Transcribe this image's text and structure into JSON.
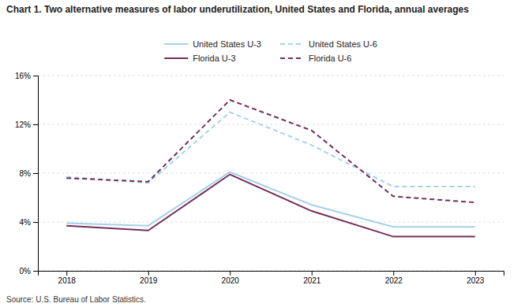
{
  "chart_data": {
    "type": "line",
    "title": "Chart 1. Two alternative measures of labor underutilization, United States and Florida, annual averages",
    "source": "Source: U.S. Bureau of Labor Statistics.",
    "x": [
      2018,
      2019,
      2020,
      2021,
      2022,
      2023
    ],
    "xlim": [
      2017.65,
      2023.35
    ],
    "xticks": [
      2018,
      2019,
      2020,
      2021,
      2022,
      2023
    ],
    "ylim": [
      0,
      16
    ],
    "yticks": [
      {
        "value": 0,
        "label": "0%"
      },
      {
        "value": 4,
        "label": "4%"
      },
      {
        "value": 8,
        "label": "8%"
      },
      {
        "value": 12,
        "label": "12%"
      },
      {
        "value": 16,
        "label": "16%"
      }
    ],
    "grid": true,
    "legend": "top",
    "series": [
      {
        "name": "United States U-3",
        "color": "#a8d0e8",
        "line_style": "solid",
        "values": [
          3.9,
          3.7,
          8.1,
          5.4,
          3.6,
          3.6
        ]
      },
      {
        "name": "United States U-6",
        "color": "#a8d0e8",
        "line_style": "dashed",
        "values": [
          7.7,
          7.2,
          13.0,
          10.3,
          6.9,
          6.9
        ]
      },
      {
        "name": "Florida U-3",
        "color": "#722f57",
        "line_style": "solid",
        "values": [
          3.7,
          3.3,
          7.9,
          4.9,
          2.8,
          2.8
        ]
      },
      {
        "name": "Florida U-6",
        "color": "#722f57",
        "line_style": "dashed",
        "values": [
          7.6,
          7.3,
          14.0,
          11.5,
          6.1,
          5.6
        ]
      }
    ]
  }
}
